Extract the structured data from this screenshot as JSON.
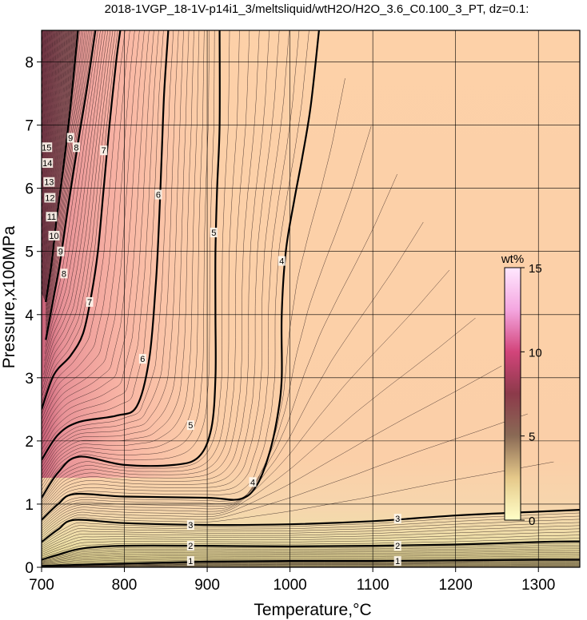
{
  "chart_data": {
    "type": "contour",
    "title": "2018-1VGP_18-1V-p14i1_3/meltsliquid/wtH2O/H2O_3.6_C0.100_3_PT, dz=0.1:",
    "xlabel": "Temperature,°C",
    "ylabel": "Pressure,x100MPa",
    "xlim": [
      700,
      1350
    ],
    "ylim": [
      0,
      8.5
    ],
    "x_ticks": [
      700,
      800,
      900,
      1000,
      1100,
      1200,
      1300
    ],
    "y_ticks": [
      0,
      1,
      2,
      3,
      4,
      5,
      6,
      7,
      8
    ],
    "grid": true,
    "colorbar": {
      "title": "wt%",
      "range": [
        0,
        15
      ],
      "ticks": [
        0,
        5,
        10,
        15
      ],
      "colors": [
        "#ffffc8",
        "#e6c98a",
        "#8a6a55",
        "#8c3a4a",
        "#d2447a",
        "#f4a6e0",
        "#ffe8ff"
      ]
    },
    "contour_interval": 0.1,
    "major_contours": [
      {
        "level": 1,
        "label": "1",
        "points": [
          [
            700,
            0.02
          ],
          [
            800,
            0.06
          ],
          [
            900,
            0.09
          ],
          [
            1000,
            0.1
          ],
          [
            1100,
            0.1
          ],
          [
            1200,
            0.11
          ],
          [
            1300,
            0.12
          ],
          [
            1350,
            0.12
          ]
        ]
      },
      {
        "level": 2,
        "label": "2",
        "points": [
          [
            700,
            0.12
          ],
          [
            720,
            0.2
          ],
          [
            750,
            0.3
          ],
          [
            800,
            0.34
          ],
          [
            900,
            0.34
          ],
          [
            1000,
            0.33
          ],
          [
            1100,
            0.34
          ],
          [
            1200,
            0.36
          ],
          [
            1300,
            0.4
          ],
          [
            1350,
            0.41
          ]
        ]
      },
      {
        "level": 3,
        "label": "3",
        "points": [
          [
            700,
            0.4
          ],
          [
            720,
            0.6
          ],
          [
            740,
            0.75
          ],
          [
            800,
            0.7
          ],
          [
            900,
            0.67
          ],
          [
            1000,
            0.68
          ],
          [
            1100,
            0.73
          ],
          [
            1200,
            0.82
          ],
          [
            1300,
            0.88
          ],
          [
            1350,
            0.91
          ]
        ]
      },
      {
        "level": 4,
        "label": "4",
        "points": [
          [
            700,
            0.75
          ],
          [
            720,
            1.0
          ],
          [
            740,
            1.16
          ],
          [
            800,
            1.12
          ],
          [
            900,
            1.1
          ],
          [
            940,
            1.08
          ],
          [
            960,
            1.3
          ],
          [
            975,
            1.8
          ],
          [
            985,
            2.4
          ],
          [
            990,
            3.0
          ],
          [
            990,
            4.0
          ],
          [
            995,
            5.0
          ],
          [
            1005,
            5.8
          ],
          [
            1015,
            6.5
          ],
          [
            1025,
            7.3
          ],
          [
            1035,
            8.5
          ]
        ]
      },
      {
        "level": 5,
        "label": "5",
        "points": [
          [
            700,
            1.1
          ],
          [
            720,
            1.5
          ],
          [
            745,
            1.75
          ],
          [
            800,
            1.62
          ],
          [
            860,
            1.62
          ],
          [
            890,
            1.75
          ],
          [
            905,
            2.2
          ],
          [
            910,
            3.0
          ],
          [
            910,
            4.0
          ],
          [
            910,
            5.0
          ],
          [
            912,
            6.0
          ],
          [
            915,
            7.0
          ],
          [
            915,
            8.5
          ]
        ]
      },
      {
        "level": 6,
        "label": "6",
        "points": [
          [
            700,
            1.7
          ],
          [
            720,
            2.1
          ],
          [
            745,
            2.3
          ],
          [
            790,
            2.4
          ],
          [
            815,
            2.55
          ],
          [
            830,
            3.3
          ],
          [
            838,
            4.5
          ],
          [
            842,
            5.5
          ],
          [
            845,
            6.5
          ],
          [
            848,
            7.5
          ],
          [
            853,
            8.5
          ]
        ]
      },
      {
        "level": 7,
        "label": "7",
        "points": [
          [
            700,
            2.5
          ],
          [
            715,
            3.05
          ],
          [
            735,
            3.35
          ],
          [
            750,
            3.7
          ],
          [
            760,
            4.3
          ],
          [
            768,
            5.0
          ],
          [
            775,
            6.0
          ],
          [
            782,
            7.0
          ],
          [
            790,
            8.0
          ],
          [
            795,
            8.5
          ]
        ]
      },
      {
        "level": 8,
        "label": "8",
        "points": [
          [
            705,
            3.6
          ],
          [
            715,
            4.3
          ],
          [
            722,
            4.8
          ],
          [
            732,
            5.7
          ],
          [
            745,
            6.8
          ],
          [
            755,
            7.6
          ],
          [
            765,
            8.5
          ]
        ]
      },
      {
        "level": 9,
        "label": "9",
        "points": [
          [
            705,
            4.2
          ],
          [
            712,
            4.8
          ],
          [
            718,
            5.5
          ],
          [
            726,
            6.3
          ],
          [
            735,
            7.3
          ],
          [
            744,
            8.5
          ]
        ]
      }
    ],
    "contour_labels": [
      {
        "text": "1",
        "x": 880,
        "y": 0.1
      },
      {
        "text": "1",
        "x": 1130,
        "y": 0.1
      },
      {
        "text": "2",
        "x": 880,
        "y": 0.34
      },
      {
        "text": "2",
        "x": 1130,
        "y": 0.34
      },
      {
        "text": "3",
        "x": 880,
        "y": 0.67
      },
      {
        "text": "3",
        "x": 1130,
        "y": 0.77
      },
      {
        "text": "4",
        "x": 955,
        "y": 1.35
      },
      {
        "text": "4",
        "x": 990,
        "y": 4.85
      },
      {
        "text": "5",
        "x": 880,
        "y": 2.25
      },
      {
        "text": "5",
        "x": 908,
        "y": 5.3
      },
      {
        "text": "6",
        "x": 822,
        "y": 3.3
      },
      {
        "text": "6",
        "x": 841,
        "y": 5.9
      },
      {
        "text": "7",
        "x": 758,
        "y": 4.2
      },
      {
        "text": "7",
        "x": 775,
        "y": 6.6
      },
      {
        "text": "8",
        "x": 727,
        "y": 4.65
      },
      {
        "text": "8",
        "x": 742,
        "y": 6.65
      },
      {
        "text": "9",
        "x": 723,
        "y": 5.0
      },
      {
        "text": "9",
        "x": 735,
        "y": 6.8
      },
      {
        "text": "10",
        "x": 715,
        "y": 5.25
      },
      {
        "text": "11",
        "x": 712,
        "y": 5.55
      },
      {
        "text": "12",
        "x": 710,
        "y": 5.85
      },
      {
        "text": "13",
        "x": 709,
        "y": 6.1
      },
      {
        "text": "14",
        "x": 707,
        "y": 6.4
      },
      {
        "text": "15",
        "x": 706,
        "y": 6.65
      }
    ]
  }
}
